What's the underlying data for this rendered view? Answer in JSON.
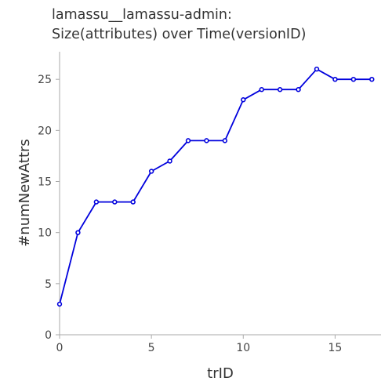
{
  "chart_data": {
    "type": "line",
    "title_lines": [
      "lamassu__lamassu-admin:",
      "Size(attributes) over Time(versionID)"
    ],
    "xlabel": "trID",
    "ylabel": "#numNewAttrs",
    "xlim": [
      0,
      17.5
    ],
    "ylim": [
      0,
      27.7
    ],
    "xticks": [
      0,
      5,
      10,
      15
    ],
    "yticks": [
      0,
      5,
      10,
      15,
      20,
      25
    ],
    "grid": false,
    "series": [
      {
        "color": "#0000dd",
        "marker": "circle",
        "x": [
          0,
          1,
          2,
          3,
          4,
          5,
          6,
          7,
          8,
          9,
          10,
          11,
          12,
          13,
          14,
          15,
          16,
          17
        ],
        "y": [
          3,
          10,
          13,
          13,
          13,
          16,
          17,
          19,
          19,
          19,
          23,
          24,
          24,
          24,
          26,
          25,
          25,
          25
        ]
      }
    ]
  }
}
